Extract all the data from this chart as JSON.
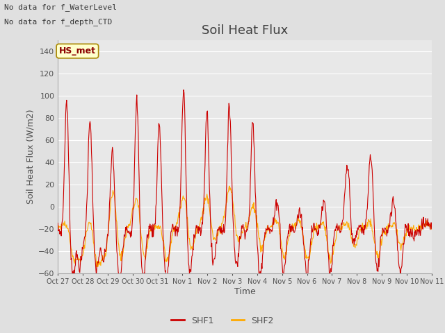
{
  "title": "Soil Heat Flux",
  "ylabel": "Soil Heat Flux (W/m2)",
  "xlabel": "Time",
  "ylim": [
    -60,
    150
  ],
  "yticks": [
    -60,
    -40,
    -20,
    0,
    20,
    40,
    60,
    80,
    100,
    120,
    140
  ],
  "xtick_labels": [
    "Oct 27",
    "Oct 28",
    "Oct 29",
    "Oct 30",
    "Oct 31",
    "Nov 1",
    "Nov 2",
    "Nov 3",
    "Nov 4",
    "Nov 5",
    "Nov 6",
    "Nov 7",
    "Nov 8",
    "Nov 9",
    "Nov 10",
    "Nov 11"
  ],
  "text_annotations": [
    "No data for f_WaterLevel",
    "No data for f_depth_CTD"
  ],
  "legend_box_label": "HS_met",
  "shf1_color": "#cc0000",
  "shf2_color": "#ffaa00",
  "bg_color": "#e0e0e0",
  "plot_bg_color": "#e8e8e8",
  "grid_color": "#ffffff",
  "title_color": "#404040",
  "axis_label_color": "#505050",
  "tick_label_color": "#505050",
  "title_fontsize": 13,
  "ylabel_fontsize": 9,
  "xlabel_fontsize": 9,
  "ytick_fontsize": 8,
  "xtick_fontsize": 7,
  "annotation_fontsize": 8,
  "legend_fontsize": 9
}
